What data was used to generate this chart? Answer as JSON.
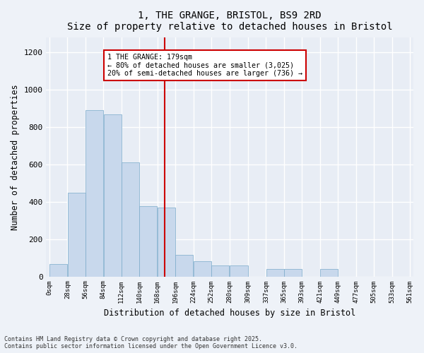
{
  "title": "1, THE GRANGE, BRISTOL, BS9 2RD",
  "subtitle": "Size of property relative to detached houses in Bristol",
  "xlabel": "Distribution of detached houses by size in Bristol",
  "ylabel": "Number of detached properties",
  "bar_color": "#c8d8ec",
  "bar_edge_color": "#7aaaca",
  "background_color": "#e8edf5",
  "fig_background_color": "#eef2f8",
  "grid_color": "#ffffff",
  "property_line_x": 179,
  "property_line_color": "#cc0000",
  "annotation_title": "1 THE GRANGE: 179sqm",
  "annotation_line1": "← 80% of detached houses are smaller (3,025)",
  "annotation_line2": "20% of semi-detached houses are larger (736) →",
  "bin_edges": [
    0,
    28,
    56,
    84,
    112,
    140,
    168,
    196,
    224,
    252,
    280,
    309,
    337,
    365,
    393,
    421,
    449,
    477,
    505,
    533,
    561
  ],
  "bar_heights": [
    65,
    450,
    890,
    870,
    610,
    375,
    370,
    115,
    80,
    60,
    60,
    0,
    40,
    40,
    0,
    40,
    0,
    0,
    0,
    0
  ],
  "ylim": [
    0,
    1280
  ],
  "yticks": [
    0,
    200,
    400,
    600,
    800,
    1000,
    1200
  ],
  "footnote1": "Contains HM Land Registry data © Crown copyright and database right 2025.",
  "footnote2": "Contains public sector information licensed under the Open Government Licence v3.0."
}
